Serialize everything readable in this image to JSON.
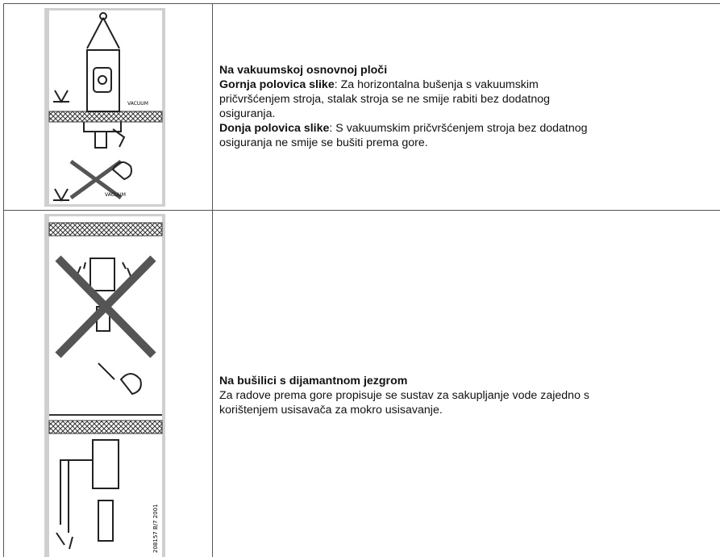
{
  "table": {
    "rows": [
      {
        "image": {
          "labels": [
            "VACUUM",
            "VACUUM"
          ]
        },
        "title": "Na vakuumskoj osnovnoj ploči",
        "paragraphs": [
          {
            "label": "Gornja polovica slike",
            "text": ": Za horizontalna bušenja s vakuumskim pričvršćenjem stroja, stalak stroja se ne smije rabiti bez dodatnog osiguranja."
          },
          {
            "label": "Donja polovica slike",
            "text": ": S vakuumskim pričvršćenjem stroja bez dodatnog osiguranja ne smije se bušiti prema gore."
          }
        ]
      },
      {
        "image": {
          "labels": [
            "208157 B/7 2001"
          ]
        },
        "title": "Na bušilici s dijamantnom jezgrom",
        "paragraphs": [
          {
            "text": "Za radove prema gore propisuje se sustav za sakupljanje vode zajedno s korištenjem usisavača za mokro usisavanje."
          }
        ]
      }
    ]
  }
}
